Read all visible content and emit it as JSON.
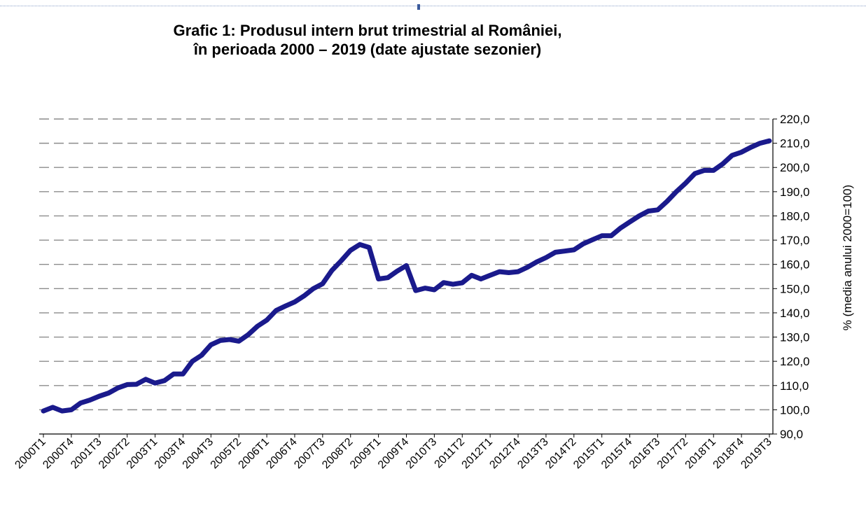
{
  "chart_data": {
    "type": "line",
    "title_line1": "Grafic 1: Produsul intern brut trimestrial al României,",
    "title_line2": "în perioada 2000 – 2019 (date ajustate sezonier)",
    "ylabel": "% (media anului 2000=100)",
    "xlabel": "",
    "ylim": [
      90,
      220
    ],
    "y_ticks": [
      "90,0",
      "100,0",
      "110,0",
      "120,0",
      "130,0",
      "140,0",
      "150,0",
      "160,0",
      "170,0",
      "180,0",
      "190,0",
      "200,0",
      "210,0",
      "220,0"
    ],
    "grid": "dashed horizontal",
    "y_axis_position": "right",
    "line_color": "#1a1a8c",
    "x_tick_labels": [
      "2000T1",
      "2000T4",
      "2001T3",
      "2002T2",
      "2003T1",
      "2003T4",
      "2004T3",
      "2005T2",
      "2006T1",
      "2006T4",
      "2007T3",
      "2008T2",
      "2009T1",
      "2009T4",
      "2010T3",
      "2011T2",
      "2012T1",
      "2012T4",
      "2013T3",
      "2014T2",
      "2015T1",
      "2015T4",
      "2016T3",
      "2017T2",
      "2018T1",
      "2018T4",
      "2019T3"
    ],
    "x": [
      "2000T1",
      "2000T2",
      "2000T3",
      "2000T4",
      "2001T1",
      "2001T2",
      "2001T3",
      "2001T4",
      "2002T1",
      "2002T2",
      "2002T3",
      "2002T4",
      "2003T1",
      "2003T2",
      "2003T3",
      "2003T4",
      "2004T1",
      "2004T2",
      "2004T3",
      "2004T4",
      "2005T1",
      "2005T2",
      "2005T3",
      "2005T4",
      "2006T1",
      "2006T2",
      "2006T3",
      "2006T4",
      "2007T1",
      "2007T2",
      "2007T3",
      "2007T4",
      "2008T1",
      "2008T2",
      "2008T3",
      "2008T4",
      "2009T1",
      "2009T2",
      "2009T3",
      "2009T4",
      "2010T1",
      "2010T2",
      "2010T3",
      "2010T4",
      "2011T1",
      "2011T2",
      "2011T3",
      "2011T4",
      "2012T1",
      "2012T2",
      "2012T3",
      "2012T4",
      "2013T1",
      "2013T2",
      "2013T3",
      "2013T4",
      "2014T1",
      "2014T2",
      "2014T3",
      "2014T4",
      "2015T1",
      "2015T2",
      "2015T3",
      "2015T4",
      "2016T1",
      "2016T2",
      "2016T3",
      "2016T4",
      "2017T1",
      "2017T2",
      "2017T3",
      "2017T4",
      "2018T1",
      "2018T2",
      "2018T3",
      "2018T4",
      "2019T1",
      "2019T2",
      "2019T3"
    ],
    "values": [
      99.5,
      101.0,
      99.5,
      100.0,
      102.8,
      104.0,
      105.6,
      106.9,
      109.0,
      110.4,
      110.5,
      112.6,
      111.0,
      112.0,
      114.8,
      114.8,
      120.0,
      122.5,
      126.8,
      128.6,
      129.0,
      128.3,
      131.0,
      134.5,
      137.0,
      141.0,
      142.8,
      144.5,
      147.0,
      150.0,
      152.0,
      157.5,
      161.5,
      165.8,
      168.2,
      167.0,
      154.0,
      154.5,
      157.2,
      159.5,
      149.2,
      150.2,
      149.5,
      152.5,
      151.8,
      152.4,
      155.5,
      154.0,
      155.5,
      157.0,
      156.6,
      157.0,
      158.8,
      161.0,
      162.8,
      165.0,
      165.5,
      166.0,
      168.5,
      170.2,
      171.8,
      171.8,
      175.0,
      177.5,
      180.0,
      182.0,
      182.5,
      186.0,
      190.0,
      193.5,
      197.5,
      198.8,
      198.8,
      201.5,
      205.0,
      206.3,
      208.3,
      210.0,
      211.0
    ]
  }
}
